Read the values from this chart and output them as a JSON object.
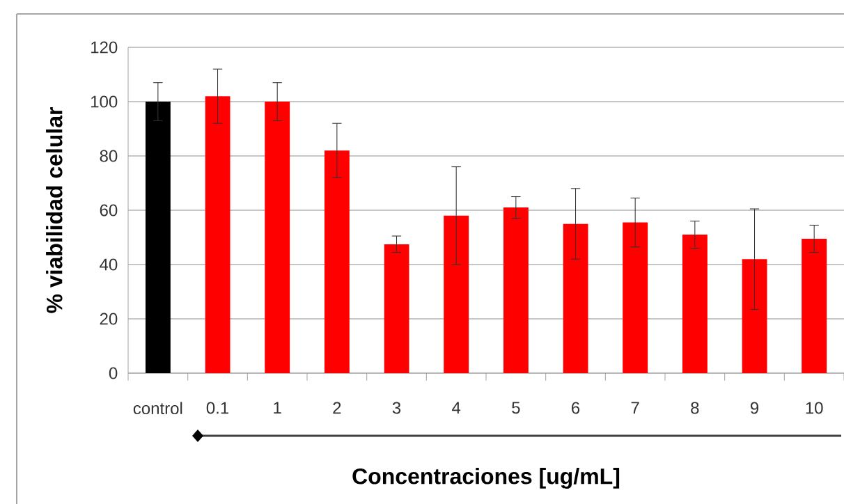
{
  "chart_data": {
    "type": "bar",
    "xlabel": "Concentraciones [ug/mL]",
    "ylabel": "% viabilidad celular",
    "categories": [
      "control",
      "0.1",
      "1",
      "2",
      "3",
      "4",
      "5",
      "6",
      "7",
      "8",
      "9",
      "10"
    ],
    "values": [
      100,
      102,
      100,
      82,
      47.5,
      58,
      61,
      55,
      55.5,
      51,
      42,
      49.5
    ],
    "errors": [
      7,
      10,
      7,
      10,
      3,
      18,
      4,
      13,
      9,
      5,
      18.5,
      5
    ],
    "colors": [
      "#000000",
      "#ff0000",
      "#ff0000",
      "#ff0000",
      "#ff0000",
      "#ff0000",
      "#ff0000",
      "#ff0000",
      "#ff0000",
      "#ff0000",
      "#ff0000",
      "#ff0000"
    ],
    "ylim": [
      0,
      120
    ],
    "yticks": [
      0,
      20,
      40,
      60,
      80,
      100,
      120
    ],
    "grid": "y"
  }
}
